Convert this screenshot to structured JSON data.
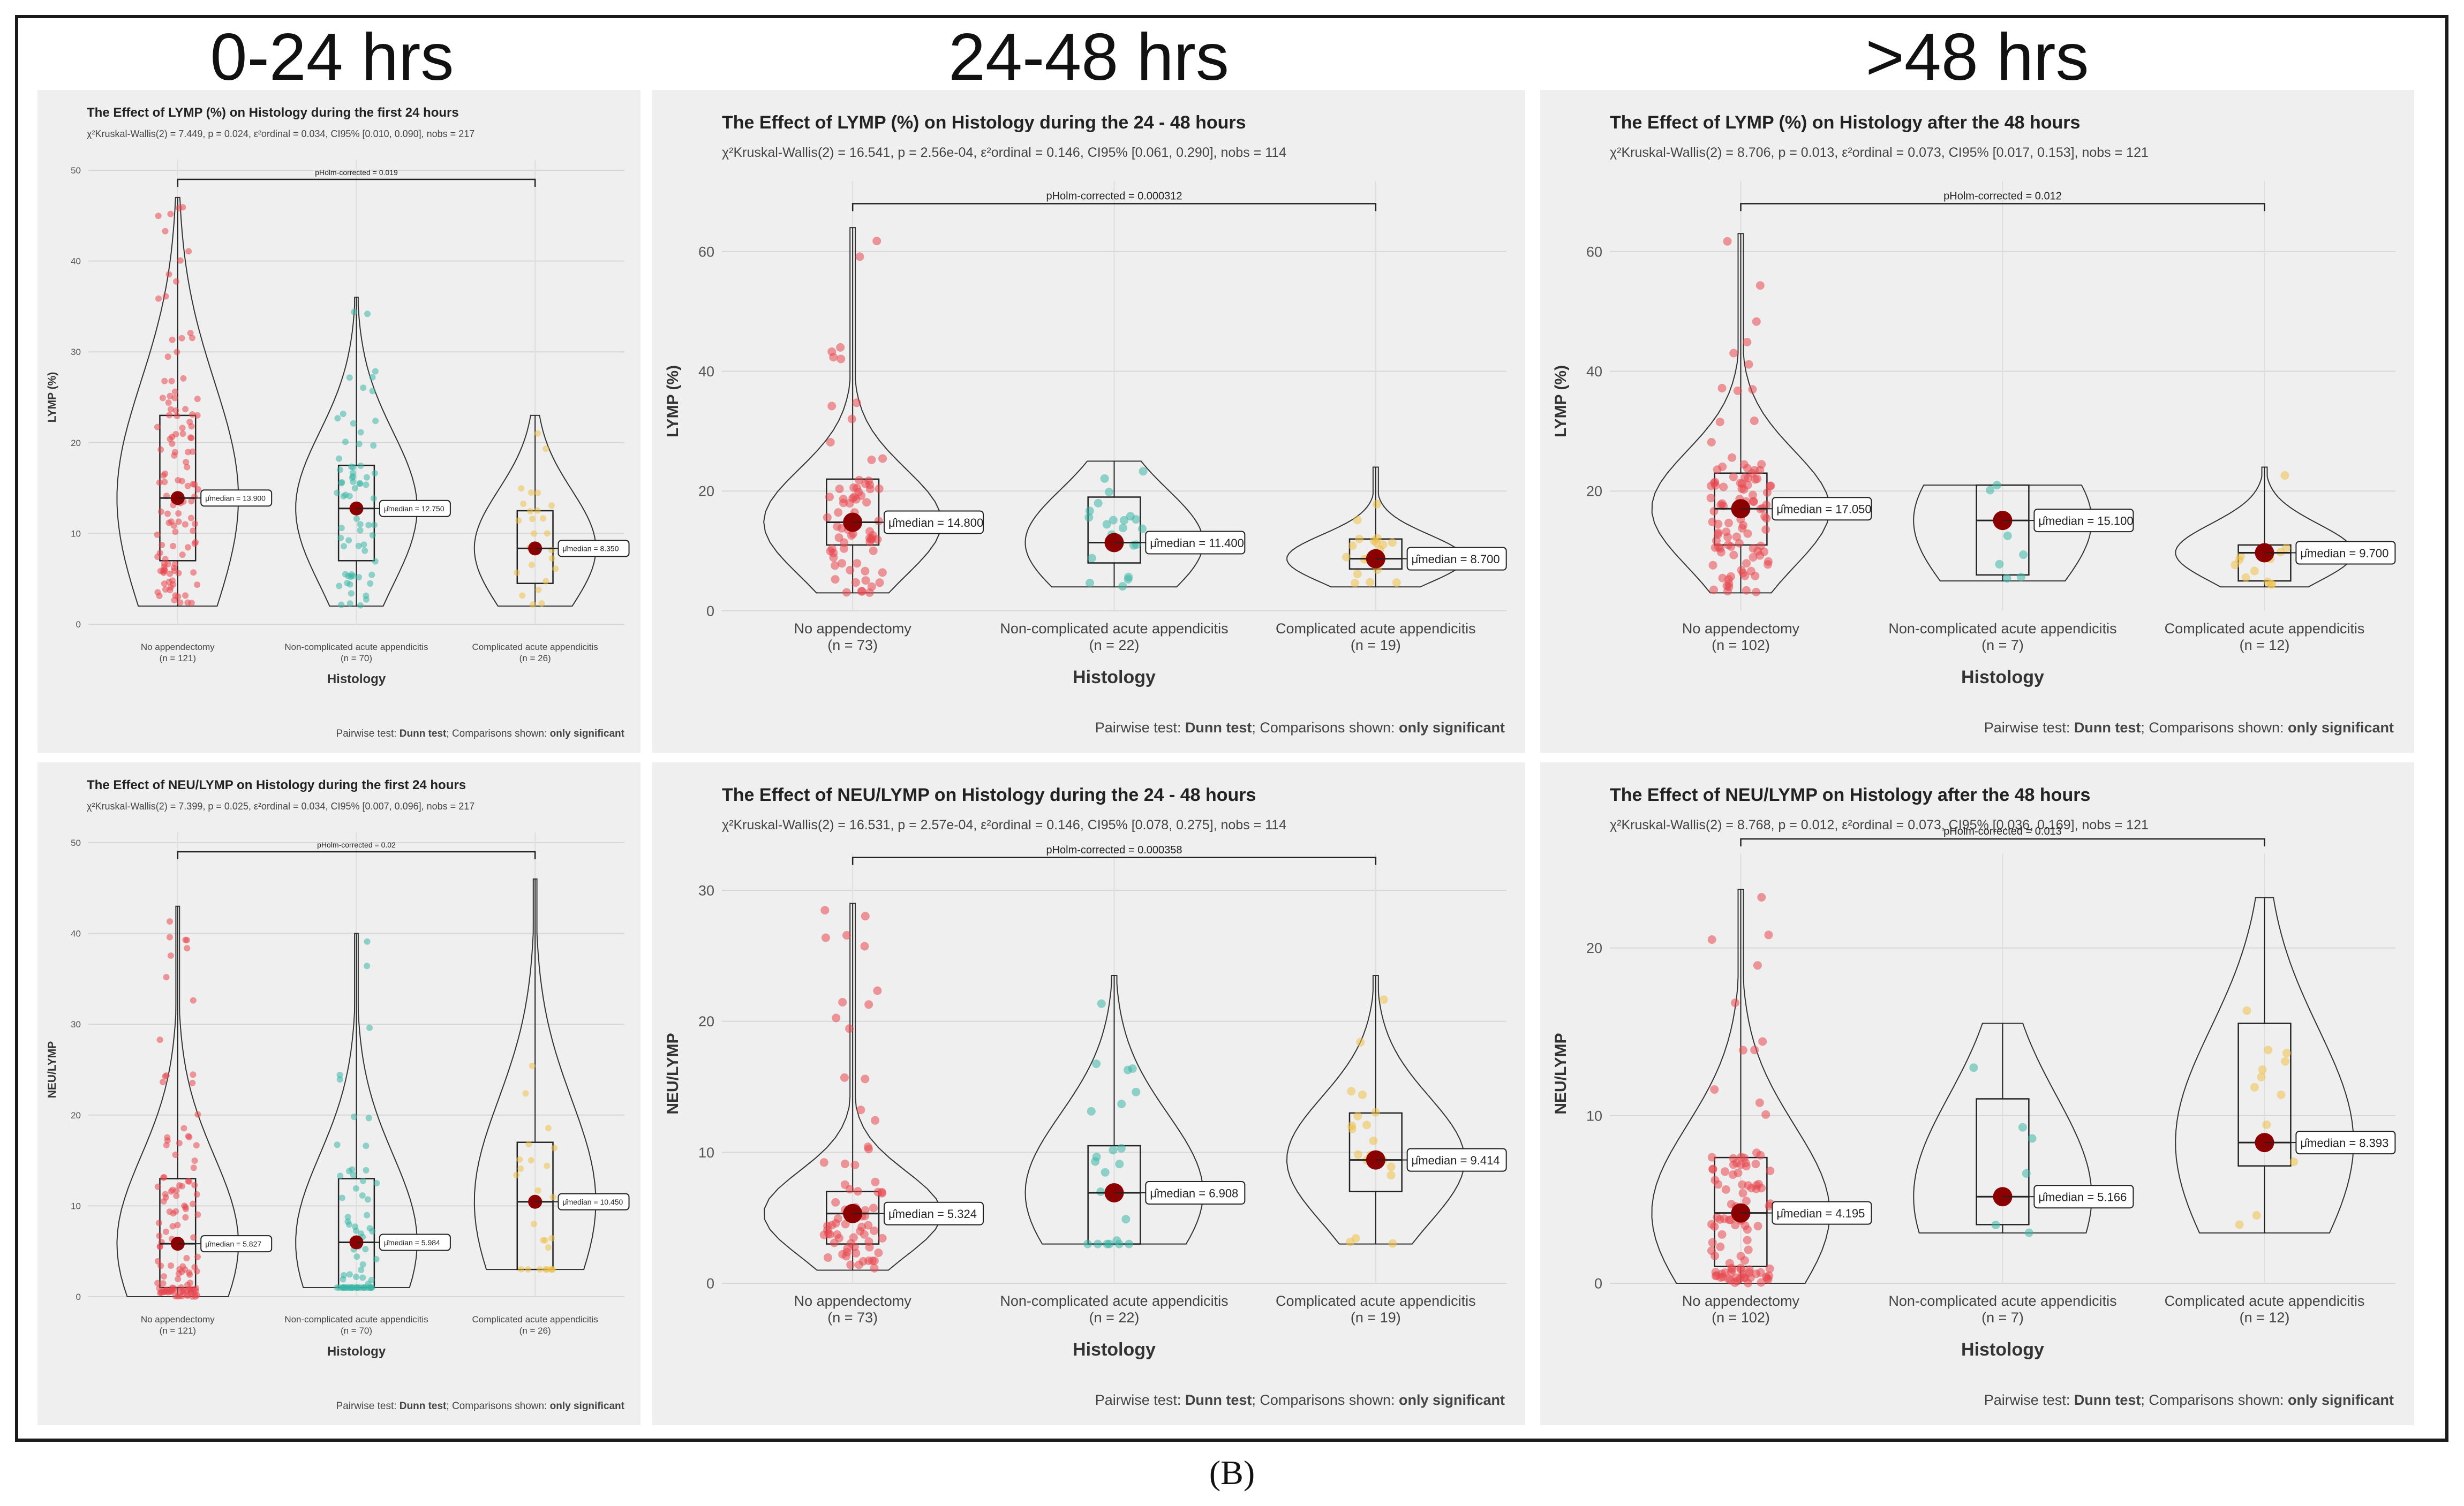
{
  "figure": {
    "caption": "(B)",
    "column_headers": [
      "0-24 hrs",
      "24-48 hrs",
      ">48 hrs"
    ],
    "xlabel": "Histology",
    "footer_prefix": "Pairwise test: ",
    "footer_test": "Dunn test",
    "footer_mid": "; Comparisons shown: ",
    "footer_shown": "only significant",
    "group_colors": [
      "#e8474f",
      "#3ab7a6",
      "#efc148"
    ],
    "median_color": "#8b0000"
  },
  "chart_data": [
    {
      "type": "violin-box",
      "title": "The Effect of LYMP (%) on Histology during the first 24 hours",
      "stats_line": "χ²Kruskal-Wallis(2) = 7.449, p = 0.024, ε²ordinal = 0.034, CI95% [0.010, 0.090], nobs = 217",
      "ylabel": "LYMP (%)",
      "ylim": [
        0,
        50
      ],
      "yticks": [
        0,
        10,
        20,
        30,
        40,
        50
      ],
      "categories": [
        "No appendectomy",
        "Non-complicated acute appendicitis",
        "Complicated acute appendicitis"
      ],
      "n_labels": [
        "(n = 121)",
        "(n = 70)",
        "(n = 26)"
      ],
      "medians": [
        13.9,
        12.75,
        8.35
      ],
      "median_labels": [
        "μ̂median = 13.900",
        "μ̂median = 12.750",
        "μ̂median = 8.350"
      ],
      "q1": [
        7,
        7,
        4.5
      ],
      "q3": [
        23,
        17.5,
        12.5
      ],
      "ranges": [
        [
          2,
          47
        ],
        [
          2,
          36
        ],
        [
          2,
          23
        ]
      ],
      "pairwise": {
        "from": 0,
        "to": 2,
        "y": 49,
        "label": "pHolm-corrected = 0.019"
      }
    },
    {
      "type": "violin-box",
      "title": "The Effect of LYMP (%) on Histology during the  24 - 48 hours",
      "stats_line": "χ²Kruskal-Wallis(2) = 16.541, p = 2.56e-04, ε²ordinal = 0.146, CI95% [0.061, 0.290], nobs = 114",
      "ylabel": "LYMP (%)",
      "ylim": [
        0,
        70
      ],
      "yticks": [
        0,
        20,
        40,
        60
      ],
      "categories": [
        "No appendectomy",
        "Non-complicated acute appendicitis",
        "Complicated acute appendicitis"
      ],
      "n_labels": [
        "(n = 73)",
        "(n = 22)",
        "(n = 19)"
      ],
      "medians": [
        14.8,
        11.4,
        8.7
      ],
      "median_labels": [
        "μ̂median = 14.800",
        "μ̂median = 11.400",
        "μ̂median = 8.700"
      ],
      "q1": [
        11,
        8,
        7
      ],
      "q3": [
        22,
        19,
        12
      ],
      "ranges": [
        [
          3,
          64
        ],
        [
          4,
          25
        ],
        [
          4,
          24
        ]
      ],
      "pairwise": {
        "from": 0,
        "to": 2,
        "y": 68,
        "label": "pHolm-corrected = 0.000312"
      }
    },
    {
      "type": "violin-box",
      "title": "The Effect of LYMP (%) on Histology after the  48 hours",
      "stats_line": "χ²Kruskal-Wallis(2) = 8.706, p = 0.013, ε²ordinal = 0.073, CI95% [0.017, 0.153], nobs = 121",
      "ylabel": "LYMP (%)",
      "ylim": [
        0,
        70
      ],
      "yticks": [
        20,
        40,
        60
      ],
      "categories": [
        "No appendectomy",
        "Non-complicated acute appendicitis",
        "Complicated acute appendicitis"
      ],
      "n_labels": [
        "(n = 102)",
        "(n = 7)",
        "(n = 12)"
      ],
      "medians": [
        17.05,
        15.1,
        9.7
      ],
      "median_labels": [
        "μ̂median = 17.050",
        "μ̂median = 15.100",
        "μ̂median = 9.700"
      ],
      "q1": [
        11,
        6,
        5
      ],
      "q3": [
        23,
        21,
        11
      ],
      "ranges": [
        [
          3,
          63
        ],
        [
          5,
          21
        ],
        [
          4,
          24
        ]
      ],
      "pairwise": {
        "from": 0,
        "to": 2,
        "y": 68,
        "label": "pHolm-corrected = 0.012"
      }
    },
    {
      "type": "violin-box",
      "title": "The Effect of NEU/LYMP on Histology during the first 24 hours",
      "stats_line": "χ²Kruskal-Wallis(2) = 7.399, p = 0.025, ε²ordinal = 0.034, CI95% [0.007, 0.096], nobs = 217",
      "ylabel": "NEU/LYMP",
      "ylim": [
        0,
        50
      ],
      "yticks": [
        0,
        10,
        20,
        30,
        40,
        50
      ],
      "categories": [
        "No appendectomy",
        "Non-complicated acute appendicitis",
        "Complicated acute appendicitis"
      ],
      "n_labels": [
        "(n = 121)",
        "(n = 70)",
        "(n = 26)"
      ],
      "medians": [
        5.827,
        5.984,
        10.45
      ],
      "median_labels": [
        "μ̂median = 5.827",
        "μ̂median = 5.984",
        "μ̂median = 10.450"
      ],
      "q1": [
        1,
        1,
        3
      ],
      "q3": [
        13,
        13,
        17
      ],
      "ranges": [
        [
          0,
          43
        ],
        [
          1,
          40
        ],
        [
          3,
          46
        ]
      ],
      "pairwise": {
        "from": 0,
        "to": 2,
        "y": 49,
        "label": "pHolm-corrected = 0.02"
      }
    },
    {
      "type": "violin-box",
      "title": "The Effect of NEU/LYMP on Histology during the  24 - 48 hours",
      "stats_line": "χ²Kruskal-Wallis(2) = 16.531, p = 2.57e-04, ε²ordinal = 0.146, CI95% [0.078, 0.275], nobs = 114",
      "ylabel": "NEU/LYMP",
      "ylim": [
        0,
        32
      ],
      "yticks": [
        0,
        10,
        20,
        30
      ],
      "categories": [
        "No appendectomy",
        "Non-complicated acute appendicitis",
        "Complicated acute appendicitis"
      ],
      "n_labels": [
        "(n = 73)",
        "(n = 22)",
        "(n = 19)"
      ],
      "medians": [
        5.324,
        6.908,
        9.414
      ],
      "median_labels": [
        "μ̂median = 5.324",
        "μ̂median = 6.908",
        "μ̂median = 9.414"
      ],
      "q1": [
        3,
        3,
        7
      ],
      "q3": [
        7,
        10.5,
        13
      ],
      "ranges": [
        [
          1,
          29
        ],
        [
          3,
          23.5
        ],
        [
          3,
          23.5
        ]
      ],
      "pairwise": {
        "from": 0,
        "to": 2,
        "y": 32.5,
        "label": "pHolm-corrected = 0.000358"
      }
    },
    {
      "type": "violin-box",
      "title": "The Effect of NEU/LYMP on Histology after the 48 hours",
      "stats_line": "χ²Kruskal-Wallis(2) = 8.768, p = 0.012, ε²ordinal = 0.073, CI95% [0.036, 0.169], nobs = 121",
      "ylabel": "NEU/LYMP",
      "ylim": [
        0,
        25
      ],
      "yticks": [
        0,
        10,
        20
      ],
      "categories": [
        "No appendectomy",
        "Non-complicated acute appendicitis",
        "Complicated acute appendicitis"
      ],
      "n_labels": [
        "(n = 102)",
        "(n = 7)",
        "(n = 12)"
      ],
      "medians": [
        4.195,
        5.166,
        8.393
      ],
      "median_labels": [
        "μ̂median = 4.195",
        "μ̂median = 5.166",
        "μ̂median = 8.393"
      ],
      "q1": [
        1,
        3.5,
        7
      ],
      "q3": [
        7.5,
        11,
        15.5
      ],
      "ranges": [
        [
          0,
          23.5
        ],
        [
          3,
          15.5
        ],
        [
          3,
          23
        ]
      ],
      "pairwise": {
        "from": 0,
        "to": 2,
        "y": 26.5,
        "label": "pHolm-corrected = 0.013"
      }
    }
  ]
}
